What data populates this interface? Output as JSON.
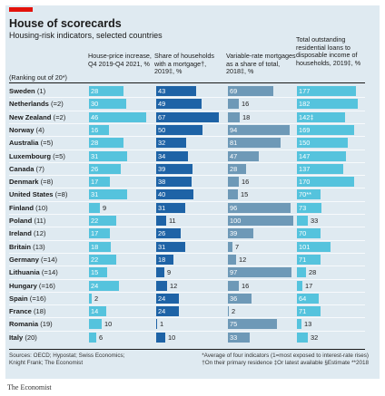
{
  "header": {
    "title": "House of scorecards",
    "subtitle": "Housing-risk indicators, selected countries",
    "rank_note": "(Ranking out of 20*)"
  },
  "colors": {
    "accent": "#e3120b",
    "background": "#dfeaf1",
    "bar_light": "#55c3dd",
    "bar_dark": "#1e63a6",
    "bar_steel": "#6e99b7"
  },
  "chart_data": {
    "type": "table",
    "title": "House of scorecards",
    "subtitle": "Housing-risk indicators, selected countries",
    "columns": [
      {
        "label": "House-price increase, Q4 2019-Q4 2021, %",
        "max": 50
      },
      {
        "label": "Share of households with a mortgage†, 2019‡, %",
        "max": 70
      },
      {
        "label": "Variable-rate mortgages as a share of total, 2018‡, %",
        "max": 100
      },
      {
        "label": "Total outstanding residential loans to disposable income of households, 2019‡, %",
        "max": 200
      }
    ],
    "rows": [
      {
        "country": "Sweden",
        "rank": "1",
        "values": [
          "28",
          "43",
          "69",
          "177"
        ],
        "numbers": [
          28,
          43,
          69,
          177
        ]
      },
      {
        "country": "Netherlands",
        "rank": "=2",
        "values": [
          "30",
          "49",
          "16",
          "182"
        ],
        "numbers": [
          30,
          49,
          16,
          182
        ]
      },
      {
        "country": "New Zealand",
        "rank": "=2",
        "values": [
          "46",
          "67",
          "18",
          "142‡"
        ],
        "numbers": [
          46,
          67,
          18,
          142
        ]
      },
      {
        "country": "Norway",
        "rank": "4",
        "values": [
          "16",
          "50",
          "94",
          "169"
        ],
        "numbers": [
          16,
          50,
          94,
          169
        ]
      },
      {
        "country": "Australia",
        "rank": "=5",
        "values": [
          "28",
          "32",
          "81",
          "150"
        ],
        "numbers": [
          28,
          32,
          81,
          150
        ]
      },
      {
        "country": "Luxembourg",
        "rank": "=5",
        "values": [
          "31",
          "34",
          "47",
          "147"
        ],
        "numbers": [
          31,
          34,
          47,
          147
        ]
      },
      {
        "country": "Canada",
        "rank": "7",
        "values": [
          "26",
          "39",
          "28",
          "137"
        ],
        "numbers": [
          26,
          39,
          28,
          137
        ]
      },
      {
        "country": "Denmark",
        "rank": "=8",
        "values": [
          "17",
          "38",
          "16",
          "170"
        ],
        "numbers": [
          17,
          38,
          16,
          170
        ]
      },
      {
        "country": "United States",
        "rank": "=8",
        "values": [
          "31",
          "40",
          "15",
          "70**"
        ],
        "numbers": [
          31,
          40,
          15,
          70
        ]
      },
      {
        "country": "Finland",
        "rank": "10",
        "values": [
          "9",
          "31",
          "96",
          "73"
        ],
        "numbers": [
          9,
          31,
          96,
          73
        ]
      },
      {
        "country": "Poland",
        "rank": "11",
        "values": [
          "22",
          "11",
          "100",
          "33"
        ],
        "numbers": [
          22,
          11,
          100,
          33
        ]
      },
      {
        "country": "Ireland",
        "rank": "12",
        "values": [
          "17",
          "26",
          "39",
          "70"
        ],
        "numbers": [
          17,
          26,
          39,
          70
        ]
      },
      {
        "country": "Britain",
        "rank": "13",
        "values": [
          "18",
          "31",
          "7",
          "101"
        ],
        "numbers": [
          18,
          31,
          7,
          101
        ]
      },
      {
        "country": "Germany",
        "rank": "=14",
        "values": [
          "22",
          "18",
          "12",
          "71"
        ],
        "numbers": [
          22,
          18,
          12,
          71
        ]
      },
      {
        "country": "Lithuania",
        "rank": "=14",
        "values": [
          "15",
          "9",
          "97",
          "28"
        ],
        "numbers": [
          15,
          9,
          97,
          28
        ]
      },
      {
        "country": "Hungary",
        "rank": "=16",
        "values": [
          "24",
          "12",
          "16",
          "17"
        ],
        "numbers": [
          24,
          12,
          16,
          17
        ]
      },
      {
        "country": "Spain",
        "rank": "=16",
        "values": [
          "2",
          "24",
          "36",
          "64"
        ],
        "numbers": [
          2,
          24,
          36,
          64
        ]
      },
      {
        "country": "France",
        "rank": "18",
        "values": [
          "14",
          "24",
          "2",
          "71"
        ],
        "numbers": [
          14,
          24,
          2,
          71
        ]
      },
      {
        "country": "Romania",
        "rank": "19",
        "values": [
          "10",
          "1",
          "75",
          "13"
        ],
        "numbers": [
          10,
          1,
          75,
          13
        ]
      },
      {
        "country": "Italy",
        "rank": "20",
        "values": [
          "6",
          "10",
          "33",
          "32"
        ],
        "numbers": [
          6,
          10,
          33,
          32
        ]
      }
    ]
  },
  "footer": {
    "source_1": "Sources: OECD; Hypostat; Swiss Economics;",
    "source_2": "Knight Frank; The Economist",
    "note_1": "*Average of four indicators (1=most exposed to interest-rate rises)",
    "note_2": "†On their primary residence   ‡Or latest available   §Estimate   **2018",
    "brand": "The Economist"
  }
}
